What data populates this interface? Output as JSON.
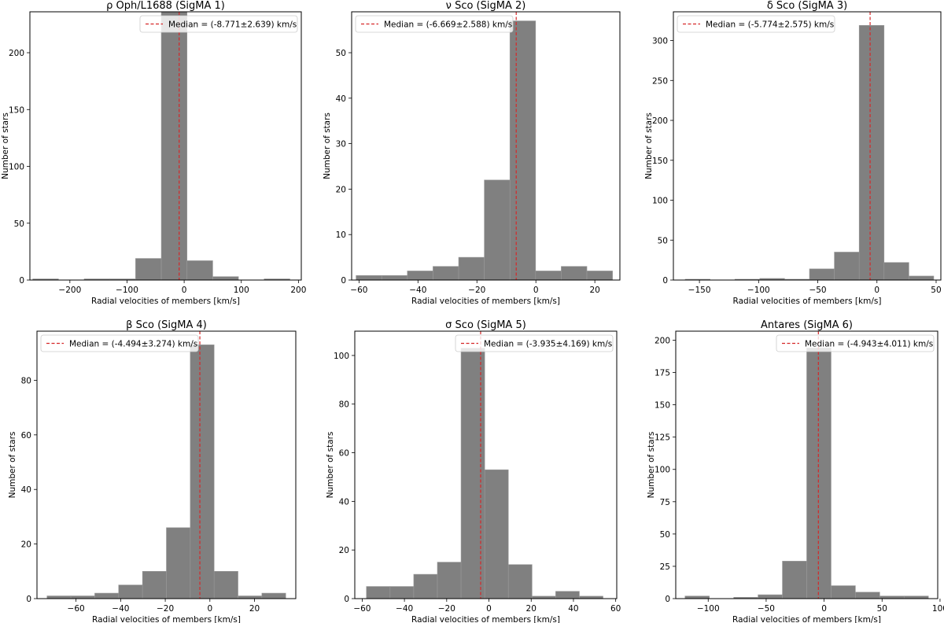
{
  "chart_data": [
    {
      "type": "bar",
      "title": "ρ Oph/L1688 (SigMA 1)",
      "xlabel": "Radial velocities of members [km/s]",
      "ylabel": "Number of stars",
      "xlim": [
        -270,
        205
      ],
      "ylim": [
        0,
        236
      ],
      "xticks": [
        -200,
        -100,
        0,
        100,
        200
      ],
      "xtick_labels": [
        "−200",
        "−100",
        "0",
        "100",
        "200"
      ],
      "yticks": [
        0,
        50,
        100,
        150,
        200
      ],
      "bin_edges": [
        -265,
        -220,
        -175,
        -130,
        -85,
        -40,
        5,
        50,
        95,
        140,
        185
      ],
      "values": [
        1,
        0,
        1,
        1,
        19,
        236,
        17,
        3,
        0,
        1
      ],
      "median": -8.771,
      "legend": "Median = (-8.771±2.639) km/s",
      "legend_pos": "top-right",
      "color": "#808080",
      "median_color": "#d62728"
    },
    {
      "type": "bar",
      "title": "ν Sco (SigMA 2)",
      "xlabel": "Radial velocities of members [km/s]",
      "ylabel": "Number of stars",
      "xlim": [
        -62.5,
        28.5
      ],
      "ylim": [
        0,
        59
      ],
      "xticks": [
        -60,
        -40,
        -20,
        0,
        20
      ],
      "xtick_labels": [
        "−60",
        "−40",
        "−20",
        "0",
        "20"
      ],
      "yticks": [
        0,
        10,
        20,
        30,
        40,
        50
      ],
      "bin_edges": [
        -61,
        -52.3,
        -43.6,
        -34.9,
        -26.2,
        -17.5,
        -8.8,
        -0.1,
        8.6,
        17.3,
        26
      ],
      "values": [
        1,
        1,
        2,
        3,
        5,
        22,
        57,
        2,
        3,
        2
      ],
      "median": -6.669,
      "legend": "Median = (-6.669±2.588) km/s",
      "legend_pos": "top-left",
      "color": "#808080",
      "median_color": "#d62728"
    },
    {
      "type": "bar",
      "title": "δ Sco (SigMA 3)",
      "xlabel": "Radial velocities of members [km/s]",
      "ylabel": "Number of stars",
      "xlim": [
        -172,
        54
      ],
      "ylim": [
        0,
        336
      ],
      "xticks": [
        -150,
        -100,
        -50,
        0,
        50
      ],
      "xtick_labels": [
        "−150",
        "−100",
        "−50",
        "0",
        "50"
      ],
      "yticks": [
        0,
        50,
        100,
        150,
        200,
        250,
        300
      ],
      "bin_edges": [
        -162,
        -141,
        -120,
        -99,
        -78,
        -57,
        -36,
        -15,
        6,
        27,
        48
      ],
      "values": [
        1,
        0,
        1,
        2,
        1,
        14,
        35,
        319,
        22,
        5
      ],
      "median": -5.774,
      "legend": "Median = (-5.774±2.575) km/s",
      "legend_pos": "top-left",
      "color": "#808080",
      "median_color": "#d62728"
    },
    {
      "type": "bar",
      "title": "β Sco (SigMA 4)",
      "xlabel": "Radial velocities of members [km/s]",
      "ylabel": "Number of stars",
      "xlim": [
        -77.5,
        38.5
      ],
      "ylim": [
        0,
        98
      ],
      "xticks": [
        -60,
        -40,
        -20,
        0,
        20
      ],
      "xtick_labels": [
        "−60",
        "−40",
        "−20",
        "0",
        "20"
      ],
      "yticks": [
        0,
        20,
        40,
        60,
        80
      ],
      "bin_edges": [
        -73,
        -62.3,
        -51.6,
        -40.9,
        -30.2,
        -19.5,
        -8.8,
        1.9,
        12.6,
        23.3,
        34
      ],
      "values": [
        1,
        1,
        2,
        5,
        10,
        26,
        93,
        10,
        1,
        2
      ],
      "median": -4.494,
      "legend": "Median = (-4.494±3.274) km/s",
      "legend_pos": "top-left",
      "color": "#808080",
      "median_color": "#d62728"
    },
    {
      "type": "bar",
      "title": "σ Sco (SigMA 5)",
      "xlabel": "Radial velocities of members [km/s]",
      "ylabel": "Number of stars",
      "xlim": [
        -63.5,
        60.5
      ],
      "ylim": [
        0,
        110
      ],
      "xticks": [
        -60,
        -40,
        -20,
        0,
        20,
        40,
        60
      ],
      "xtick_labels": [
        "−60",
        "−40",
        "−20",
        "0",
        "20",
        "40",
        "60"
      ],
      "yticks": [
        0,
        20,
        40,
        60,
        80,
        100
      ],
      "bin_edges": [
        -58,
        -46.8,
        -35.6,
        -24.4,
        -13.2,
        -2,
        9.2,
        20.4,
        31.6,
        42.8,
        54
      ],
      "values": [
        5,
        5,
        10,
        15,
        103,
        53,
        14,
        1,
        3,
        1
      ],
      "median": -3.935,
      "legend": "Median = (-3.935±4.169) km/s",
      "legend_pos": "top-right",
      "color": "#808080",
      "median_color": "#d62728"
    },
    {
      "type": "bar",
      "title": "Antares (SigMA 6)",
      "xlabel": "Radial velocities of members [km/s]",
      "ylabel": "Number of stars",
      "xlim": [
        -128,
        98
      ],
      "ylim": [
        0,
        207
      ],
      "xticks": [
        -100,
        -50,
        0,
        50,
        100
      ],
      "xtick_labels": [
        "−100",
        "−50",
        "0",
        "50",
        "100"
      ],
      "yticks": [
        0,
        25,
        50,
        75,
        100,
        125,
        150,
        175,
        200
      ],
      "bin_edges": [
        -120,
        -99,
        -78,
        -57,
        -36,
        -15,
        6,
        27,
        48,
        69,
        90
      ],
      "values": [
        2,
        0,
        1,
        3,
        29,
        194,
        10,
        5,
        2,
        2
      ],
      "median": -4.943,
      "legend": "Median = (-4.943±4.011) km/s",
      "legend_pos": "top-right",
      "color": "#808080",
      "median_color": "#d62728"
    }
  ]
}
